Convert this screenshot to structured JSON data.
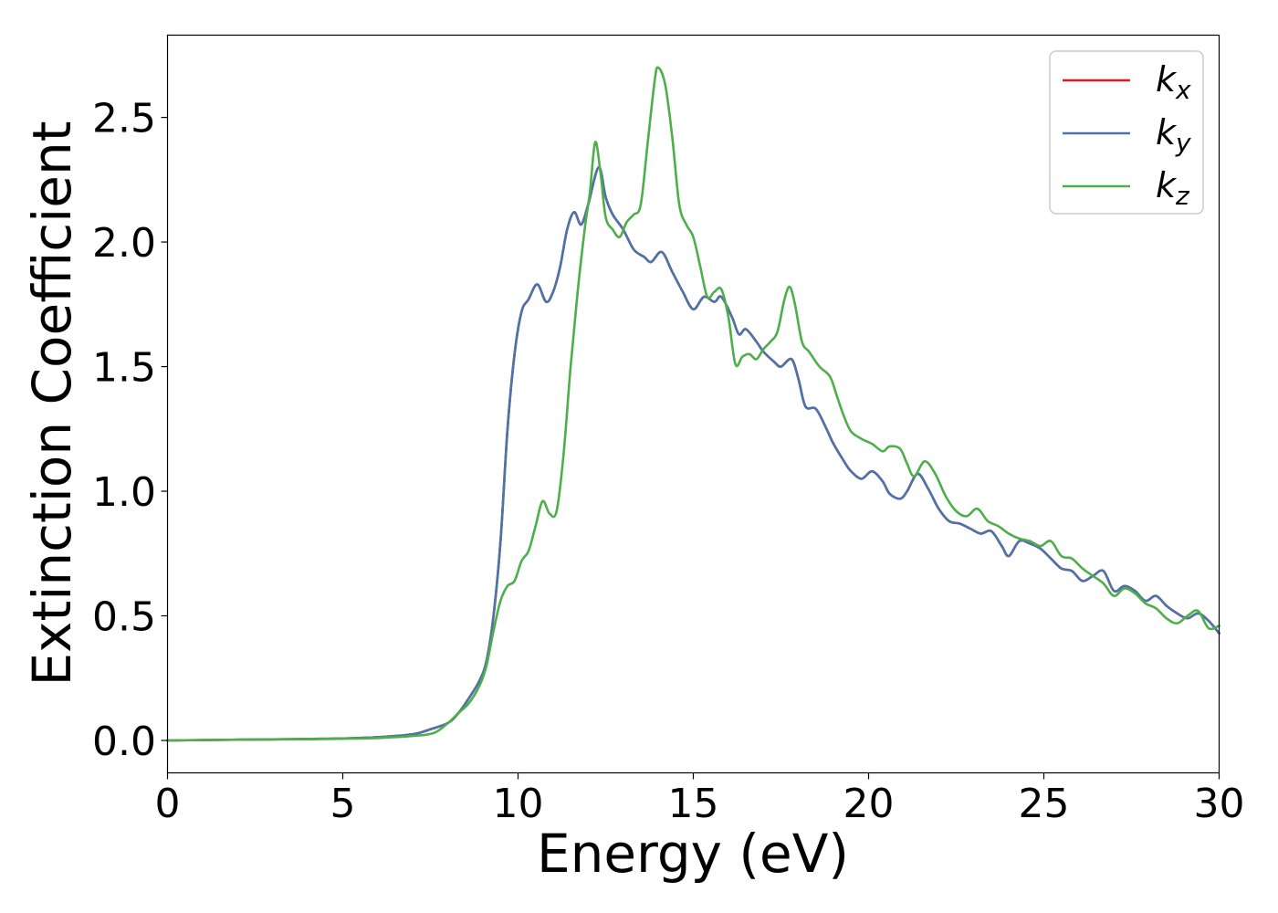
{
  "chart_data": {
    "type": "line",
    "title": "",
    "xlabel": "Energy (eV)",
    "ylabel": "Extinction Coefficient",
    "xlim": [
      0,
      30
    ],
    "ylim": [
      -0.13,
      2.83
    ],
    "xticks": [
      0,
      5,
      10,
      15,
      20,
      25,
      30
    ],
    "yticks": [
      0.0,
      0.5,
      1.0,
      1.5,
      2.0,
      2.5
    ],
    "xtick_labels": [
      "0",
      "5",
      "10",
      "15",
      "20",
      "25",
      "30"
    ],
    "ytick_labels": [
      "0.0",
      "0.5",
      "1.0",
      "1.5",
      "2.0",
      "2.5"
    ],
    "grid": false,
    "legend": {
      "placement": "top-right"
    },
    "series": [
      {
        "name": "k_x",
        "label_base": "k",
        "label_sub": "x",
        "color": "#e41a1c",
        "points": [
          [
            0,
            0
          ],
          [
            2,
            0.003
          ],
          [
            4,
            0.006
          ],
          [
            5,
            0.008
          ],
          [
            6,
            0.013
          ],
          [
            7,
            0.025
          ],
          [
            7.5,
            0.045
          ],
          [
            8,
            0.07
          ],
          [
            8.3,
            0.11
          ],
          [
            8.6,
            0.17
          ],
          [
            8.9,
            0.24
          ],
          [
            9.1,
            0.32
          ],
          [
            9.3,
            0.5
          ],
          [
            9.5,
            0.8
          ],
          [
            9.7,
            1.25
          ],
          [
            9.9,
            1.55
          ],
          [
            10.1,
            1.72
          ],
          [
            10.3,
            1.77
          ],
          [
            10.55,
            1.83
          ],
          [
            10.8,
            1.76
          ],
          [
            11.0,
            1.8
          ],
          [
            11.2,
            1.9
          ],
          [
            11.4,
            2.05
          ],
          [
            11.6,
            2.12
          ],
          [
            11.8,
            2.07
          ],
          [
            12.0,
            2.15
          ],
          [
            12.3,
            2.3
          ],
          [
            12.5,
            2.18
          ],
          [
            12.7,
            2.11
          ],
          [
            13.0,
            2.05
          ],
          [
            13.3,
            1.97
          ],
          [
            13.6,
            1.94
          ],
          [
            13.8,
            1.92
          ],
          [
            14.1,
            1.96
          ],
          [
            14.4,
            1.88
          ],
          [
            14.7,
            1.8
          ],
          [
            15.0,
            1.73
          ],
          [
            15.3,
            1.78
          ],
          [
            15.6,
            1.76
          ],
          [
            15.8,
            1.78
          ],
          [
            16.1,
            1.7
          ],
          [
            16.3,
            1.63
          ],
          [
            16.5,
            1.65
          ],
          [
            16.8,
            1.6
          ],
          [
            17.0,
            1.56
          ],
          [
            17.3,
            1.52
          ],
          [
            17.5,
            1.5
          ],
          [
            17.8,
            1.53
          ],
          [
            18.0,
            1.45
          ],
          [
            18.2,
            1.34
          ],
          [
            18.5,
            1.33
          ],
          [
            18.8,
            1.25
          ],
          [
            19.0,
            1.19
          ],
          [
            19.3,
            1.12
          ],
          [
            19.5,
            1.08
          ],
          [
            19.8,
            1.05
          ],
          [
            20.1,
            1.08
          ],
          [
            20.4,
            1.04
          ],
          [
            20.6,
            0.99
          ],
          [
            20.9,
            0.97
          ],
          [
            21.1,
            1.0
          ],
          [
            21.4,
            1.07
          ],
          [
            21.7,
            1.01
          ],
          [
            22.0,
            0.93
          ],
          [
            22.3,
            0.88
          ],
          [
            22.6,
            0.87
          ],
          [
            22.9,
            0.85
          ],
          [
            23.2,
            0.83
          ],
          [
            23.5,
            0.84
          ],
          [
            23.8,
            0.78
          ],
          [
            24.0,
            0.74
          ],
          [
            24.3,
            0.8
          ],
          [
            24.6,
            0.79
          ],
          [
            24.9,
            0.77
          ],
          [
            25.2,
            0.73
          ],
          [
            25.5,
            0.69
          ],
          [
            25.8,
            0.68
          ],
          [
            26.1,
            0.64
          ],
          [
            26.4,
            0.66
          ],
          [
            26.7,
            0.68
          ],
          [
            27.0,
            0.6
          ],
          [
            27.3,
            0.62
          ],
          [
            27.6,
            0.6
          ],
          [
            27.9,
            0.56
          ],
          [
            28.2,
            0.58
          ],
          [
            28.5,
            0.54
          ],
          [
            28.8,
            0.51
          ],
          [
            29.1,
            0.49
          ],
          [
            29.4,
            0.51
          ],
          [
            29.7,
            0.48
          ],
          [
            30.0,
            0.43
          ]
        ]
      },
      {
        "name": "k_y",
        "label_base": "k",
        "label_sub": "y",
        "color": "#4a74aa",
        "points": [
          [
            0,
            0
          ],
          [
            2,
            0.003
          ],
          [
            4,
            0.006
          ],
          [
            5,
            0.008
          ],
          [
            6,
            0.013
          ],
          [
            7,
            0.025
          ],
          [
            7.5,
            0.045
          ],
          [
            8,
            0.07
          ],
          [
            8.3,
            0.11
          ],
          [
            8.6,
            0.17
          ],
          [
            8.9,
            0.24
          ],
          [
            9.1,
            0.32
          ],
          [
            9.3,
            0.5
          ],
          [
            9.5,
            0.8
          ],
          [
            9.7,
            1.25
          ],
          [
            9.9,
            1.55
          ],
          [
            10.1,
            1.72
          ],
          [
            10.3,
            1.77
          ],
          [
            10.55,
            1.83
          ],
          [
            10.8,
            1.76
          ],
          [
            11.0,
            1.8
          ],
          [
            11.2,
            1.9
          ],
          [
            11.4,
            2.05
          ],
          [
            11.6,
            2.12
          ],
          [
            11.8,
            2.07
          ],
          [
            12.0,
            2.15
          ],
          [
            12.3,
            2.3
          ],
          [
            12.5,
            2.18
          ],
          [
            12.7,
            2.11
          ],
          [
            13.0,
            2.05
          ],
          [
            13.3,
            1.97
          ],
          [
            13.6,
            1.94
          ],
          [
            13.8,
            1.92
          ],
          [
            14.1,
            1.96
          ],
          [
            14.4,
            1.88
          ],
          [
            14.7,
            1.8
          ],
          [
            15.0,
            1.73
          ],
          [
            15.3,
            1.78
          ],
          [
            15.6,
            1.76
          ],
          [
            15.8,
            1.78
          ],
          [
            16.1,
            1.7
          ],
          [
            16.3,
            1.63
          ],
          [
            16.5,
            1.65
          ],
          [
            16.8,
            1.6
          ],
          [
            17.0,
            1.56
          ],
          [
            17.3,
            1.52
          ],
          [
            17.5,
            1.5
          ],
          [
            17.8,
            1.53
          ],
          [
            18.0,
            1.45
          ],
          [
            18.2,
            1.34
          ],
          [
            18.5,
            1.33
          ],
          [
            18.8,
            1.25
          ],
          [
            19.0,
            1.19
          ],
          [
            19.3,
            1.12
          ],
          [
            19.5,
            1.08
          ],
          [
            19.8,
            1.05
          ],
          [
            20.1,
            1.08
          ],
          [
            20.4,
            1.04
          ],
          [
            20.6,
            0.99
          ],
          [
            20.9,
            0.97
          ],
          [
            21.1,
            1.0
          ],
          [
            21.4,
            1.07
          ],
          [
            21.7,
            1.01
          ],
          [
            22.0,
            0.93
          ],
          [
            22.3,
            0.88
          ],
          [
            22.6,
            0.87
          ],
          [
            22.9,
            0.85
          ],
          [
            23.2,
            0.83
          ],
          [
            23.5,
            0.84
          ],
          [
            23.8,
            0.78
          ],
          [
            24.0,
            0.74
          ],
          [
            24.3,
            0.8
          ],
          [
            24.6,
            0.79
          ],
          [
            24.9,
            0.77
          ],
          [
            25.2,
            0.73
          ],
          [
            25.5,
            0.69
          ],
          [
            25.8,
            0.68
          ],
          [
            26.1,
            0.64
          ],
          [
            26.4,
            0.66
          ],
          [
            26.7,
            0.68
          ],
          [
            27.0,
            0.6
          ],
          [
            27.3,
            0.62
          ],
          [
            27.6,
            0.6
          ],
          [
            27.9,
            0.56
          ],
          [
            28.2,
            0.58
          ],
          [
            28.5,
            0.54
          ],
          [
            28.8,
            0.51
          ],
          [
            29.1,
            0.49
          ],
          [
            29.4,
            0.51
          ],
          [
            29.7,
            0.48
          ],
          [
            30.0,
            0.43
          ]
        ]
      },
      {
        "name": "k_z",
        "label_base": "k",
        "label_sub": "z",
        "color": "#4daf4a",
        "points": [
          [
            0,
            0
          ],
          [
            2,
            0.003
          ],
          [
            4,
            0.005
          ],
          [
            5,
            0.007
          ],
          [
            6,
            0.01
          ],
          [
            7,
            0.018
          ],
          [
            7.6,
            0.03
          ],
          [
            8.0,
            0.07
          ],
          [
            8.3,
            0.11
          ],
          [
            8.6,
            0.15
          ],
          [
            8.9,
            0.22
          ],
          [
            9.1,
            0.3
          ],
          [
            9.3,
            0.44
          ],
          [
            9.5,
            0.56
          ],
          [
            9.7,
            0.62
          ],
          [
            9.9,
            0.64
          ],
          [
            10.1,
            0.72
          ],
          [
            10.3,
            0.76
          ],
          [
            10.5,
            0.86
          ],
          [
            10.7,
            0.96
          ],
          [
            10.9,
            0.91
          ],
          [
            11.1,
            0.92
          ],
          [
            11.3,
            1.15
          ],
          [
            11.5,
            1.5
          ],
          [
            11.7,
            1.8
          ],
          [
            11.9,
            2.05
          ],
          [
            12.05,
            2.2
          ],
          [
            12.2,
            2.4
          ],
          [
            12.35,
            2.28
          ],
          [
            12.5,
            2.1
          ],
          [
            12.7,
            2.05
          ],
          [
            12.9,
            2.02
          ],
          [
            13.1,
            2.08
          ],
          [
            13.3,
            2.11
          ],
          [
            13.5,
            2.15
          ],
          [
            13.7,
            2.4
          ],
          [
            13.9,
            2.65
          ],
          [
            14.0,
            2.7
          ],
          [
            14.2,
            2.63
          ],
          [
            14.4,
            2.42
          ],
          [
            14.6,
            2.15
          ],
          [
            14.8,
            2.07
          ],
          [
            15.0,
            2.02
          ],
          [
            15.2,
            1.9
          ],
          [
            15.4,
            1.78
          ],
          [
            15.6,
            1.8
          ],
          [
            15.8,
            1.81
          ],
          [
            16.0,
            1.7
          ],
          [
            16.2,
            1.51
          ],
          [
            16.4,
            1.54
          ],
          [
            16.6,
            1.55
          ],
          [
            16.8,
            1.53
          ],
          [
            17.0,
            1.57
          ],
          [
            17.2,
            1.6
          ],
          [
            17.4,
            1.64
          ],
          [
            17.6,
            1.77
          ],
          [
            17.75,
            1.82
          ],
          [
            17.9,
            1.75
          ],
          [
            18.1,
            1.6
          ],
          [
            18.3,
            1.56
          ],
          [
            18.6,
            1.5
          ],
          [
            18.9,
            1.46
          ],
          [
            19.1,
            1.38
          ],
          [
            19.3,
            1.3
          ],
          [
            19.5,
            1.24
          ],
          [
            19.8,
            1.21
          ],
          [
            20.1,
            1.19
          ],
          [
            20.4,
            1.16
          ],
          [
            20.6,
            1.18
          ],
          [
            20.9,
            1.17
          ],
          [
            21.1,
            1.11
          ],
          [
            21.3,
            1.06
          ],
          [
            21.6,
            1.12
          ],
          [
            21.9,
            1.07
          ],
          [
            22.2,
            0.98
          ],
          [
            22.5,
            0.92
          ],
          [
            22.8,
            0.9
          ],
          [
            23.1,
            0.93
          ],
          [
            23.4,
            0.88
          ],
          [
            23.7,
            0.86
          ],
          [
            24.0,
            0.83
          ],
          [
            24.3,
            0.81
          ],
          [
            24.6,
            0.8
          ],
          [
            24.9,
            0.78
          ],
          [
            25.2,
            0.8
          ],
          [
            25.5,
            0.74
          ],
          [
            25.8,
            0.73
          ],
          [
            26.1,
            0.69
          ],
          [
            26.4,
            0.66
          ],
          [
            26.7,
            0.63
          ],
          [
            27.0,
            0.58
          ],
          [
            27.3,
            0.61
          ],
          [
            27.6,
            0.59
          ],
          [
            27.9,
            0.55
          ],
          [
            28.2,
            0.53
          ],
          [
            28.5,
            0.49
          ],
          [
            28.8,
            0.47
          ],
          [
            29.1,
            0.5
          ],
          [
            29.4,
            0.52
          ],
          [
            29.7,
            0.45
          ],
          [
            30.0,
            0.46
          ]
        ]
      }
    ]
  }
}
